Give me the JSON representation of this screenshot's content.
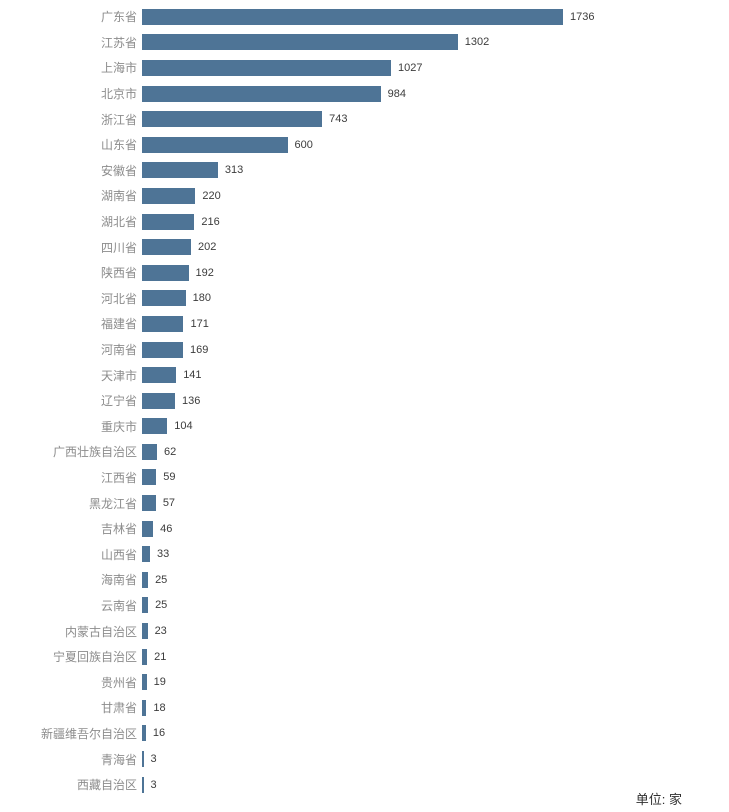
{
  "chart_data": {
    "type": "bar",
    "orientation": "horizontal",
    "title": "",
    "xlabel": "",
    "ylabel": "",
    "unit_note": "单位: 家",
    "bar_color": "#4e7496",
    "category_label_color": "#8c8c8c",
    "value_label_color": "#3c3c3c",
    "xlim": [
      0,
      1736
    ],
    "grid": false,
    "legend": false,
    "value_labels_shown": true,
    "categories": [
      "广东省",
      "江苏省",
      "上海市",
      "北京市",
      "浙江省",
      "山东省",
      "安徽省",
      "湖南省",
      "湖北省",
      "四川省",
      "陕西省",
      "河北省",
      "福建省",
      "河南省",
      "天津市",
      "辽宁省",
      "重庆市",
      "广西壮族自治区",
      "江西省",
      "黑龙江省",
      "吉林省",
      "山西省",
      "海南省",
      "云南省",
      "内蒙古自治区",
      "宁夏回族自治区",
      "贵州省",
      "甘肃省",
      "新疆维吾尔自治区",
      "青海省",
      "西藏自治区"
    ],
    "values": [
      1736,
      1302,
      1027,
      984,
      743,
      600,
      313,
      220,
      216,
      202,
      192,
      180,
      171,
      169,
      141,
      136,
      104,
      62,
      59,
      57,
      46,
      33,
      25,
      25,
      23,
      21,
      19,
      18,
      16,
      3,
      3
    ]
  }
}
